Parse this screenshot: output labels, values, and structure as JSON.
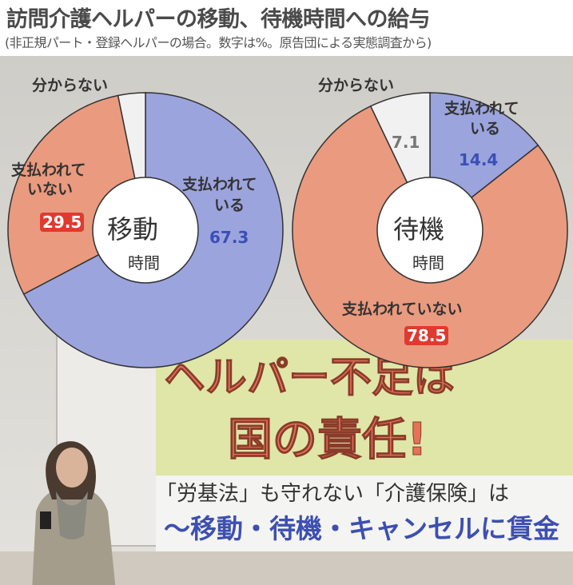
{
  "title": "訪問介護ヘルパーの移動、待機時間への給与",
  "subtitle": "(非正規パート・登録ヘルパーの場合。数字は%。原告団による実態調査から)",
  "colors": {
    "paid": "#9ba4dd",
    "unpaid": "#ea9a7e",
    "unknown": "#f1f1f1",
    "outline": "#333333"
  },
  "chart_data": [
    {
      "type": "pie",
      "variant": "donut",
      "center_label": [
        "移動",
        "時間"
      ],
      "categories": [
        "支払われている",
        "支払われていない",
        "分からない"
      ],
      "values": [
        67.3,
        29.5,
        3.2
      ],
      "labels": {
        "unknown": "分からない",
        "unpaid": [
          "支払われて",
          "いない"
        ],
        "paid": [
          "支払われて",
          "いる"
        ]
      },
      "value_labels": {
        "paid": "67.3",
        "unpaid": "29.5"
      }
    },
    {
      "type": "pie",
      "variant": "donut",
      "center_label": [
        "待機",
        "時間"
      ],
      "categories": [
        "支払われている",
        "支払われていない",
        "分からない"
      ],
      "values": [
        14.4,
        78.5,
        7.1
      ],
      "labels": {
        "unknown": "分からない",
        "unpaid": [
          "支払われていない"
        ],
        "paid": [
          "支払われて",
          "いる"
        ]
      },
      "value_labels": {
        "paid": "14.4",
        "unpaid": "78.5",
        "unknown": "7.1"
      }
    }
  ],
  "photo": {
    "banner_line1": "ヘルパー不足は",
    "banner_line2": "国の責任!",
    "banner_line3": "「労基法」も守れない「介護保険」は",
    "banner_line4": "〜移動・待機・キャンセルに賃金"
  }
}
